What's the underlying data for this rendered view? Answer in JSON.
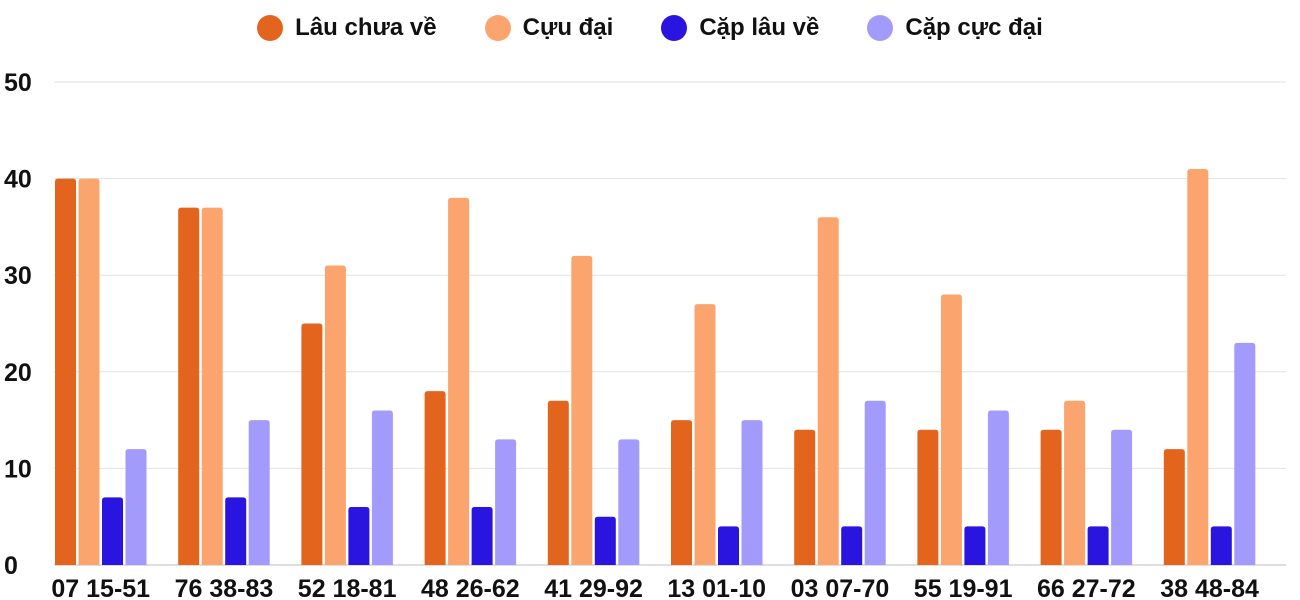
{
  "chart_data": {
    "type": "bar",
    "title": "",
    "xlabel": "",
    "ylabel": "",
    "ylim": [
      0,
      50
    ],
    "yticks": [
      0,
      10,
      20,
      30,
      40,
      50
    ],
    "grid": true,
    "legend_position": "top-center",
    "categories": [
      "07 15-51",
      "76 38-83",
      "52 18-81",
      "48 26-62",
      "41 29-92",
      "13 01-10",
      "03 07-70",
      "55 19-91",
      "66 27-72",
      "38 48-84"
    ],
    "series": [
      {
        "name": "Lâu chưa về",
        "color": "#e3651d",
        "values": [
          40,
          37,
          25,
          18,
          17,
          15,
          14,
          14,
          14,
          12
        ]
      },
      {
        "name": "Cựu đại",
        "color": "#fba46e",
        "values": [
          40,
          37,
          31,
          38,
          32,
          27,
          36,
          28,
          17,
          41
        ]
      },
      {
        "name": "Cặp lâu về",
        "color": "#2a14e0",
        "values": [
          7,
          7,
          6,
          6,
          5,
          4,
          4,
          4,
          4,
          4
        ]
      },
      {
        "name": "Cặp cực đại",
        "color": "#a29bfb",
        "values": [
          12,
          15,
          16,
          13,
          13,
          15,
          17,
          16,
          14,
          23
        ]
      }
    ]
  }
}
